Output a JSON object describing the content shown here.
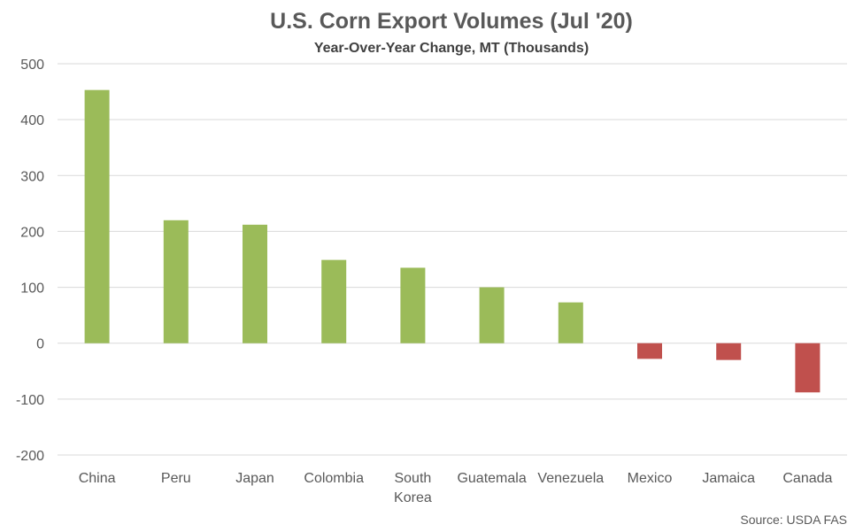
{
  "chart_data": {
    "type": "bar",
    "title": "U.S. Corn Export Volumes (Jul '20)",
    "subtitle": "Year-Over-Year Change, MT (Thousands)",
    "categories": [
      [
        "China"
      ],
      [
        "Peru"
      ],
      [
        "Japan"
      ],
      [
        "Colombia"
      ],
      [
        "South",
        "Korea"
      ],
      [
        "Guatemala"
      ],
      [
        "Venezuela"
      ],
      [
        "Mexico"
      ],
      [
        "Jamaica"
      ],
      [
        "Canada"
      ]
    ],
    "values": [
      453,
      220,
      212,
      149,
      135,
      100,
      73,
      -28,
      -30,
      -88
    ],
    "ylim": [
      -200,
      500
    ],
    "yticks": [
      500,
      400,
      300,
      200,
      100,
      0,
      -100,
      -200
    ],
    "grid": true,
    "colors": {
      "positive": "#9bbb59",
      "negative": "#c0504d"
    },
    "source": "Source: USDA FAS"
  }
}
